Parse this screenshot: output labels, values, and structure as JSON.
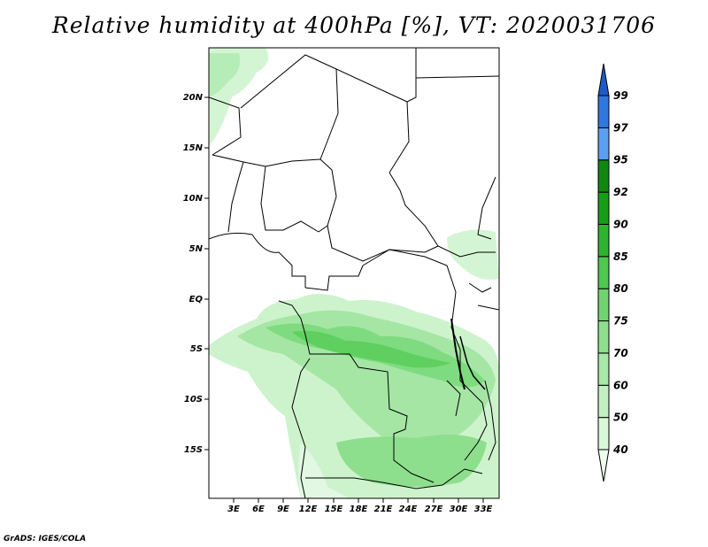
{
  "title": "Relative humidity at 400hPa [%], VT: 2020031706",
  "credit": "GrADS: IGES/COLA",
  "map": {
    "lat_labels": [
      "20N",
      "15N",
      "10N",
      "5N",
      "EQ",
      "5S",
      "10S",
      "15S"
    ],
    "lon_labels": [
      "3E",
      "6E",
      "9E",
      "12E",
      "15E",
      "18E",
      "21E",
      "24E",
      "27E",
      "30E",
      "33E"
    ]
  },
  "colorbar": {
    "levels": [
      "40",
      "50",
      "60",
      "70",
      "75",
      "80",
      "85",
      "90",
      "92",
      "95",
      "97",
      "99"
    ],
    "colors": [
      "#f0fff0",
      "#d9f7d9",
      "#c2f0c2",
      "#a8e8a8",
      "#8ddf8d",
      "#6fd46f",
      "#4fc84f",
      "#2fb42f",
      "#179e17",
      "#108810",
      "#5aa0f0",
      "#2f78e0",
      "#1e5ac8"
    ]
  }
}
